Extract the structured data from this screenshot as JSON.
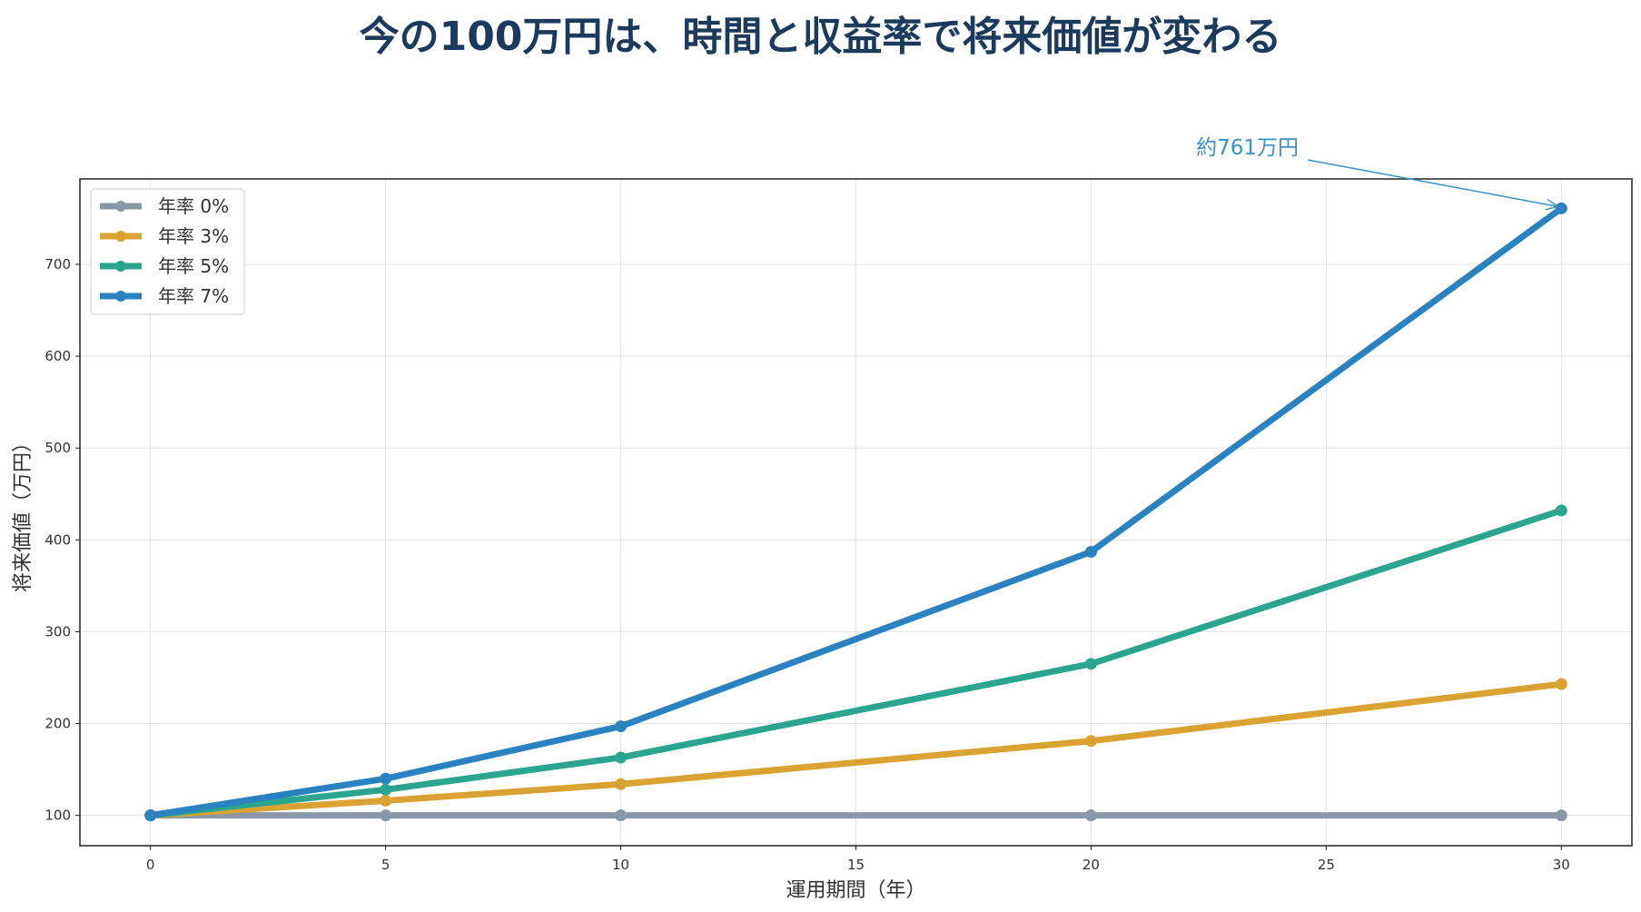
{
  "chart_data": {
    "type": "line",
    "title": "今の100万円は、時間と収益率で将来価値が変わる",
    "xlabel": "運用期間（年）",
    "ylabel": "将来価値（万円）",
    "x": [
      0,
      5,
      10,
      20,
      30
    ],
    "xlim": [
      -1.5,
      31.5
    ],
    "ylim": [
      67,
      793
    ],
    "x_ticks": [
      0,
      5,
      10,
      15,
      20,
      25,
      30
    ],
    "y_ticks": [
      100,
      200,
      300,
      400,
      500,
      600,
      700
    ],
    "grid": true,
    "legend_position": "top-left",
    "series": [
      {
        "name": "年率 0%",
        "color": "#8a97a6",
        "values": [
          100,
          100,
          100,
          100,
          100
        ]
      },
      {
        "name": "年率 3%",
        "color": "#d9a232",
        "values": [
          100,
          116,
          134,
          181,
          243
        ]
      },
      {
        "name": "年率 5%",
        "color": "#2ba58d",
        "values": [
          100,
          128,
          163,
          265,
          432
        ]
      },
      {
        "name": "年率 7%",
        "color": "#2a82c0",
        "values": [
          100,
          140,
          197,
          387,
          761
        ]
      }
    ],
    "annotation": {
      "text": "約761万円",
      "x": 30,
      "y": 761,
      "color": "#3a8fc6"
    }
  }
}
